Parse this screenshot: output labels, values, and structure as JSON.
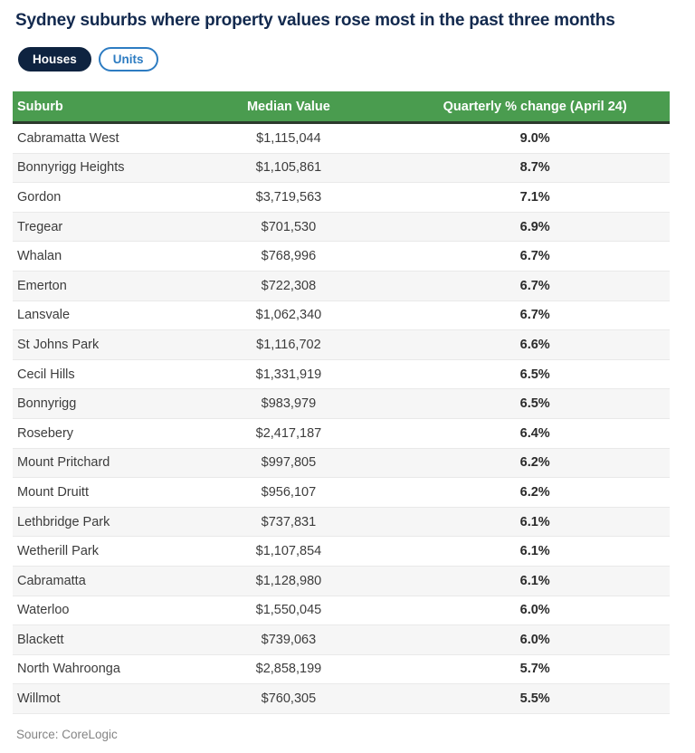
{
  "header": {
    "title": "Sydney suburbs where property values rose most in the past three months"
  },
  "toggles": {
    "houses_label": "Houses",
    "units_label": "Units",
    "selected": "Houses"
  },
  "chart_data": {
    "type": "table",
    "title": "Sydney suburbs where property values rose most in the past three months",
    "columns": [
      "Suburb",
      "Median Value",
      "Quarterly % change (April 24)"
    ],
    "rows": [
      {
        "suburb": "Cabramatta West",
        "median": "$1,115,044",
        "change": "9.0%"
      },
      {
        "suburb": "Bonnyrigg Heights",
        "median": "$1,105,861",
        "change": "8.7%"
      },
      {
        "suburb": "Gordon",
        "median": "$3,719,563",
        "change": "7.1%"
      },
      {
        "suburb": "Tregear",
        "median": "$701,530",
        "change": "6.9%"
      },
      {
        "suburb": "Whalan",
        "median": "$768,996",
        "change": "6.7%"
      },
      {
        "suburb": "Emerton",
        "median": "$722,308",
        "change": "6.7%"
      },
      {
        "suburb": "Lansvale",
        "median": "$1,062,340",
        "change": "6.7%"
      },
      {
        "suburb": "St Johns Park",
        "median": "$1,116,702",
        "change": "6.6%"
      },
      {
        "suburb": "Cecil Hills",
        "median": "$1,331,919",
        "change": "6.5%"
      },
      {
        "suburb": "Bonnyrigg",
        "median": "$983,979",
        "change": "6.5%"
      },
      {
        "suburb": "Rosebery",
        "median": "$2,417,187",
        "change": "6.4%"
      },
      {
        "suburb": "Mount Pritchard",
        "median": "$997,805",
        "change": "6.2%"
      },
      {
        "suburb": "Mount Druitt",
        "median": "$956,107",
        "change": "6.2%"
      },
      {
        "suburb": "Lethbridge Park",
        "median": "$737,831",
        "change": "6.1%"
      },
      {
        "suburb": "Wetherill Park",
        "median": "$1,107,854",
        "change": "6.1%"
      },
      {
        "suburb": "Cabramatta",
        "median": "$1,128,980",
        "change": "6.1%"
      },
      {
        "suburb": "Waterloo",
        "median": "$1,550,045",
        "change": "6.0%"
      },
      {
        "suburb": "Blackett",
        "median": "$739,063",
        "change": "6.0%"
      },
      {
        "suburb": "North Wahroonga",
        "median": "$2,858,199",
        "change": "5.7%"
      },
      {
        "suburb": "Willmot",
        "median": "$760,305",
        "change": "5.5%"
      }
    ]
  },
  "footer": {
    "source": "Source: CoreLogic"
  },
  "colors": {
    "header_green": "#4a9c4f",
    "header_border": "#2c3a2c",
    "title_navy": "#12294e",
    "active_pill_navy": "#0e2340",
    "link_blue": "#2d7cc2",
    "row_stripe": "#f6f6f6",
    "source_gray": "#848484"
  }
}
